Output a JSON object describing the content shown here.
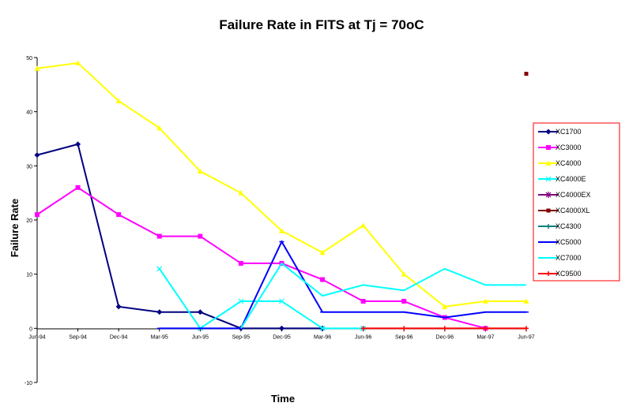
{
  "chart_data": {
    "type": "line",
    "title": "Failure Rate in FITS at Tj = 70oC",
    "xlabel": "Time",
    "ylabel": "Failure Rate",
    "ylim": [
      -10,
      50
    ],
    "yticks": [
      -10,
      0,
      10,
      20,
      30,
      40,
      50
    ],
    "grid": false,
    "legend_position": "right",
    "categories": [
      "Jun-94",
      "Sep-94",
      "Dec-94",
      "Mar-95",
      "Jun-95",
      "Sep-95",
      "Dec-95",
      "Mar-96",
      "Jun-96",
      "Sep-96",
      "Dec-96",
      "Mar-97",
      "Jun-97"
    ],
    "series": [
      {
        "name": "XC1700",
        "color": "#000080",
        "marker": "diamond",
        "values": [
          32,
          34,
          4,
          3,
          3,
          0,
          0,
          0,
          null,
          null,
          null,
          null,
          null
        ]
      },
      {
        "name": "XC3000",
        "color": "#FF00FF",
        "marker": "square",
        "values": [
          21,
          26,
          21,
          17,
          17,
          12,
          12,
          9,
          5,
          5,
          2,
          0,
          null
        ]
      },
      {
        "name": "XC4000",
        "color": "#FFFF00",
        "marker": "triangle",
        "values": [
          48,
          49,
          42,
          37,
          29,
          25,
          18,
          14,
          19,
          10,
          4,
          5,
          5
        ]
      },
      {
        "name": "XC4000E",
        "color": "#00FFFF",
        "marker": "x",
        "values": [
          null,
          null,
          null,
          11,
          0,
          5,
          5,
          0,
          0,
          null,
          null,
          null,
          null
        ]
      },
      {
        "name": "XC4000EX",
        "color": "#800080",
        "marker": "star",
        "values": [
          null,
          null,
          null,
          null,
          null,
          null,
          null,
          null,
          null,
          null,
          null,
          null,
          null
        ]
      },
      {
        "name": "XC4000XL",
        "color": "#800000",
        "marker": "circle",
        "values": [
          null,
          null,
          null,
          null,
          null,
          null,
          null,
          null,
          null,
          null,
          null,
          null,
          47
        ]
      },
      {
        "name": "XC4300",
        "color": "#008080",
        "marker": "plus",
        "values": [
          null,
          null,
          null,
          null,
          null,
          null,
          null,
          null,
          null,
          null,
          null,
          null,
          null
        ]
      },
      {
        "name": "XC5000",
        "color": "#0000FF",
        "marker": "dash",
        "values": [
          null,
          null,
          null,
          0,
          0,
          0,
          16,
          3,
          3,
          3,
          2,
          3,
          3
        ]
      },
      {
        "name": "XC7000",
        "color": "#00FFFF",
        "marker": "none",
        "values": [
          null,
          null,
          null,
          null,
          null,
          0,
          12,
          6,
          8,
          7,
          11,
          8,
          8
        ]
      },
      {
        "name": "XC9500",
        "color": "#FF0000",
        "marker": "plus",
        "values": [
          null,
          null,
          null,
          null,
          null,
          null,
          null,
          null,
          0,
          0,
          0,
          0,
          0
        ]
      }
    ]
  }
}
